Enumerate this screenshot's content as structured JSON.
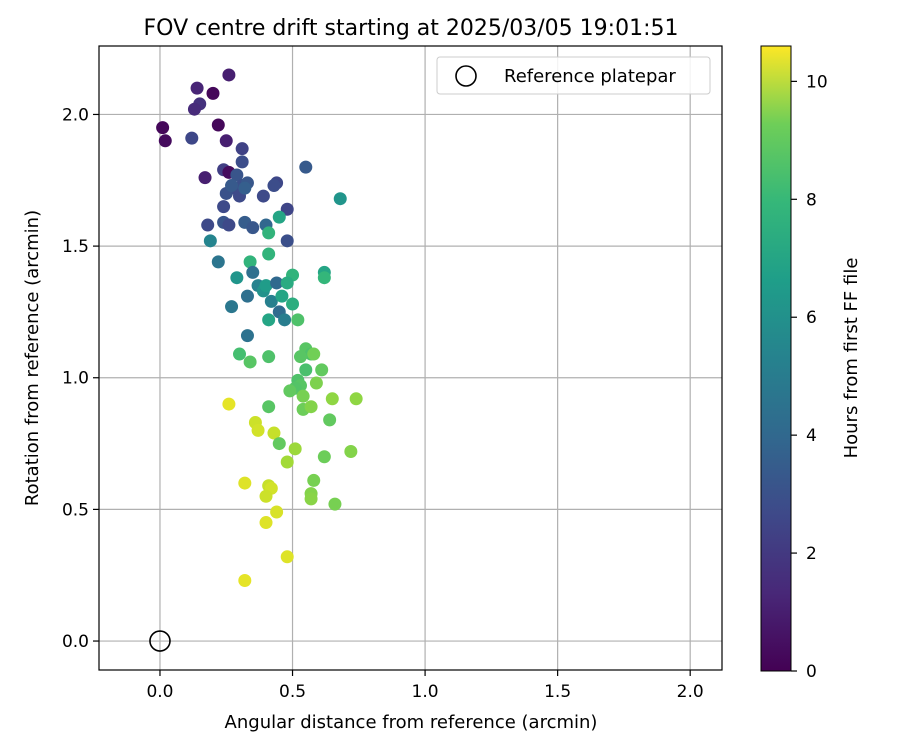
{
  "chart_data": {
    "type": "scatter",
    "title": "FOV centre drift starting at 2025/03/05 19:01:51",
    "xlabel": "Angular distance from reference (arcmin)",
    "ylabel": "Rotation from reference (arcmin)",
    "xlim": [
      -0.23,
      2.12
    ],
    "ylim": [
      -0.11,
      2.26
    ],
    "xticks": [
      "0.0",
      "0.5",
      "1.0",
      "1.5",
      "2.0"
    ],
    "yticks": [
      "0.0",
      "0.5",
      "1.0",
      "1.5",
      "2.0"
    ],
    "grid": true,
    "legend": {
      "position": "top-right",
      "entries": [
        "Reference platepar"
      ]
    },
    "reference_point": {
      "x": 0.0,
      "y": 0.0,
      "name": "Reference platepar"
    },
    "colorbar": {
      "label": "Hours from first FF file",
      "colormap": "viridis",
      "range": [
        0,
        10.6
      ],
      "ticks": [
        "0",
        "2",
        "4",
        "6",
        "8",
        "10"
      ]
    },
    "points": [
      {
        "x": 0.01,
        "y": 1.95,
        "c": 0.2
      },
      {
        "x": 0.02,
        "y": 1.9,
        "c": 0.3
      },
      {
        "x": 0.14,
        "y": 2.1,
        "c": 1.1
      },
      {
        "x": 0.15,
        "y": 2.04,
        "c": 1.5
      },
      {
        "x": 0.13,
        "y": 2.02,
        "c": 1.3
      },
      {
        "x": 0.2,
        "y": 2.08,
        "c": 0.2
      },
      {
        "x": 0.26,
        "y": 2.15,
        "c": 0.9
      },
      {
        "x": 0.12,
        "y": 1.91,
        "c": 2.3
      },
      {
        "x": 0.22,
        "y": 1.96,
        "c": 0.2
      },
      {
        "x": 0.25,
        "y": 1.9,
        "c": 0.9
      },
      {
        "x": 0.17,
        "y": 1.76,
        "c": 0.9
      },
      {
        "x": 0.24,
        "y": 1.79,
        "c": 2.0
      },
      {
        "x": 0.26,
        "y": 1.78,
        "c": 0.3
      },
      {
        "x": 0.31,
        "y": 1.87,
        "c": 2.1
      },
      {
        "x": 0.31,
        "y": 1.82,
        "c": 2.5
      },
      {
        "x": 0.29,
        "y": 1.77,
        "c": 2.8
      },
      {
        "x": 0.28,
        "y": 1.72,
        "c": 2.4
      },
      {
        "x": 0.31,
        "y": 1.73,
        "c": 2.6
      },
      {
        "x": 0.33,
        "y": 1.74,
        "c": 2.9
      },
      {
        "x": 0.3,
        "y": 1.69,
        "c": 2.4
      },
      {
        "x": 0.25,
        "y": 1.7,
        "c": 2.7
      },
      {
        "x": 0.27,
        "y": 1.73,
        "c": 3.0
      },
      {
        "x": 0.24,
        "y": 1.65,
        "c": 2.4
      },
      {
        "x": 0.32,
        "y": 1.72,
        "c": 3.2
      },
      {
        "x": 0.39,
        "y": 1.69,
        "c": 2.4
      },
      {
        "x": 0.44,
        "y": 1.74,
        "c": 2.3
      },
      {
        "x": 0.43,
        "y": 1.73,
        "c": 2.5
      },
      {
        "x": 0.55,
        "y": 1.8,
        "c": 3.0
      },
      {
        "x": 0.48,
        "y": 1.64,
        "c": 2.2
      },
      {
        "x": 0.45,
        "y": 1.61,
        "c": 6.2
      },
      {
        "x": 0.68,
        "y": 1.68,
        "c": 5.5
      },
      {
        "x": 0.18,
        "y": 1.58,
        "c": 2.4
      },
      {
        "x": 0.24,
        "y": 1.59,
        "c": 2.8
      },
      {
        "x": 0.26,
        "y": 1.58,
        "c": 2.4
      },
      {
        "x": 0.32,
        "y": 1.59,
        "c": 3.1
      },
      {
        "x": 0.35,
        "y": 1.57,
        "c": 2.9
      },
      {
        "x": 0.4,
        "y": 1.58,
        "c": 3.5
      },
      {
        "x": 0.41,
        "y": 1.55,
        "c": 6.9
      },
      {
        "x": 0.48,
        "y": 1.52,
        "c": 2.6
      },
      {
        "x": 0.19,
        "y": 1.52,
        "c": 4.8
      },
      {
        "x": 0.22,
        "y": 1.44,
        "c": 4.1
      },
      {
        "x": 0.34,
        "y": 1.44,
        "c": 6.9
      },
      {
        "x": 0.41,
        "y": 1.47,
        "c": 6.9
      },
      {
        "x": 0.35,
        "y": 1.4,
        "c": 3.9
      },
      {
        "x": 0.29,
        "y": 1.38,
        "c": 5.5
      },
      {
        "x": 0.5,
        "y": 1.39,
        "c": 6.9
      },
      {
        "x": 0.62,
        "y": 1.4,
        "c": 6.2
      },
      {
        "x": 0.62,
        "y": 1.38,
        "c": 7.0
      },
      {
        "x": 0.37,
        "y": 1.35,
        "c": 4.7
      },
      {
        "x": 0.39,
        "y": 1.33,
        "c": 5.4
      },
      {
        "x": 0.4,
        "y": 1.35,
        "c": 5.8
      },
      {
        "x": 0.44,
        "y": 1.36,
        "c": 3.6
      },
      {
        "x": 0.48,
        "y": 1.36,
        "c": 6.5
      },
      {
        "x": 0.33,
        "y": 1.31,
        "c": 3.9
      },
      {
        "x": 0.42,
        "y": 1.29,
        "c": 4.6
      },
      {
        "x": 0.46,
        "y": 1.31,
        "c": 6.2
      },
      {
        "x": 0.5,
        "y": 1.28,
        "c": 6.6
      },
      {
        "x": 0.27,
        "y": 1.27,
        "c": 4.2
      },
      {
        "x": 0.45,
        "y": 1.25,
        "c": 3.7
      },
      {
        "x": 0.47,
        "y": 1.22,
        "c": 4.5
      },
      {
        "x": 0.41,
        "y": 1.22,
        "c": 6.2
      },
      {
        "x": 0.52,
        "y": 1.22,
        "c": 7.6
      },
      {
        "x": 0.33,
        "y": 1.16,
        "c": 4.0
      },
      {
        "x": 0.3,
        "y": 1.09,
        "c": 7.4
      },
      {
        "x": 0.34,
        "y": 1.06,
        "c": 7.8
      },
      {
        "x": 0.41,
        "y": 1.08,
        "c": 7.6
      },
      {
        "x": 0.55,
        "y": 1.11,
        "c": 7.8
      },
      {
        "x": 0.57,
        "y": 1.09,
        "c": 7.6
      },
      {
        "x": 0.53,
        "y": 1.08,
        "c": 7.8
      },
      {
        "x": 0.58,
        "y": 1.09,
        "c": 8.3
      },
      {
        "x": 0.55,
        "y": 1.03,
        "c": 7.5
      },
      {
        "x": 0.61,
        "y": 1.03,
        "c": 8.0
      },
      {
        "x": 0.52,
        "y": 0.99,
        "c": 7.6
      },
      {
        "x": 0.53,
        "y": 0.97,
        "c": 7.8
      },
      {
        "x": 0.51,
        "y": 0.96,
        "c": 7.7
      },
      {
        "x": 0.49,
        "y": 0.95,
        "c": 8.0
      },
      {
        "x": 0.59,
        "y": 0.98,
        "c": 8.5
      },
      {
        "x": 0.54,
        "y": 0.93,
        "c": 8.4
      },
      {
        "x": 0.65,
        "y": 0.92,
        "c": 8.8
      },
      {
        "x": 0.74,
        "y": 0.92,
        "c": 8.8
      },
      {
        "x": 0.54,
        "y": 0.88,
        "c": 8.2
      },
      {
        "x": 0.57,
        "y": 0.89,
        "c": 8.6
      },
      {
        "x": 0.41,
        "y": 0.89,
        "c": 7.8
      },
      {
        "x": 0.64,
        "y": 0.84,
        "c": 8.0
      },
      {
        "x": 0.26,
        "y": 0.9,
        "c": 10.2
      },
      {
        "x": 0.36,
        "y": 0.83,
        "c": 9.8
      },
      {
        "x": 0.37,
        "y": 0.8,
        "c": 9.9
      },
      {
        "x": 0.43,
        "y": 0.79,
        "c": 9.7
      },
      {
        "x": 0.45,
        "y": 0.75,
        "c": 8.0
      },
      {
        "x": 0.51,
        "y": 0.73,
        "c": 9.0
      },
      {
        "x": 0.72,
        "y": 0.72,
        "c": 8.6
      },
      {
        "x": 0.62,
        "y": 0.7,
        "c": 8.2
      },
      {
        "x": 0.48,
        "y": 0.68,
        "c": 9.1
      },
      {
        "x": 0.58,
        "y": 0.61,
        "c": 8.4
      },
      {
        "x": 0.32,
        "y": 0.6,
        "c": 10.1
      },
      {
        "x": 0.41,
        "y": 0.59,
        "c": 9.7
      },
      {
        "x": 0.42,
        "y": 0.58,
        "c": 9.9
      },
      {
        "x": 0.57,
        "y": 0.56,
        "c": 8.6
      },
      {
        "x": 0.4,
        "y": 0.55,
        "c": 9.8
      },
      {
        "x": 0.57,
        "y": 0.54,
        "c": 8.7
      },
      {
        "x": 0.66,
        "y": 0.52,
        "c": 8.4
      },
      {
        "x": 0.44,
        "y": 0.49,
        "c": 10.0
      },
      {
        "x": 0.4,
        "y": 0.45,
        "c": 10.1
      },
      {
        "x": 0.48,
        "y": 0.32,
        "c": 10.1
      },
      {
        "x": 0.32,
        "y": 0.23,
        "c": 10.2
      }
    ]
  }
}
